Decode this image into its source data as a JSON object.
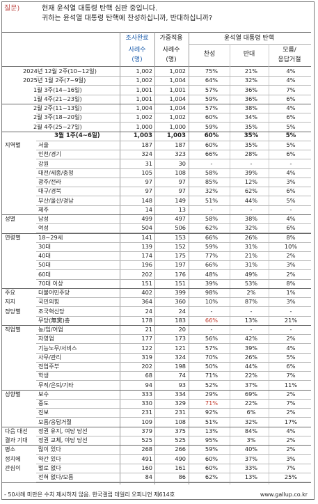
{
  "question": {
    "label": "질문)",
    "line1": "현재 윤석열 대통령 탄핵 심판 중입니다.",
    "line2": "귀하는 윤석열 대통령 탄핵에 찬성하십니까, 반대하십니까?"
  },
  "headers": {
    "survey": "조사완료",
    "weighted": "가중적용",
    "cases1": "사례수",
    "cases2": "(명)",
    "group": "윤석열 대통령 탄핵",
    "approve": "찬성",
    "oppose": "반대",
    "unsure1": "모름/",
    "unsure2": "응답거절"
  },
  "rows": [
    {
      "g": "",
      "l": "2024년 12월 2주(10~12일)",
      "n": "1,002",
      "w": "1,002",
      "a": "75%",
      "o": "21%",
      "u": "4%",
      "type": "trend"
    },
    {
      "g": "",
      "l": "2025년 1월 2주(7~9일)",
      "n": "1,002",
      "w": "1,004",
      "a": "64%",
      "o": "32%",
      "u": "4%",
      "type": "trend"
    },
    {
      "g": "",
      "l": "1월 3주(14~16일)",
      "n": "1,001",
      "w": "1,001",
      "a": "57%",
      "o": "36%",
      "u": "7%",
      "type": "trend"
    },
    {
      "g": "",
      "l": "1월 4주(21~23일)",
      "n": "1,001",
      "w": "1,004",
      "a": "59%",
      "o": "36%",
      "u": "6%",
      "type": "trend"
    },
    {
      "g": "",
      "l": "2월 2주(11~13일)",
      "n": "1,004",
      "w": "1,004",
      "a": "57%",
      "o": "38%",
      "u": "4%",
      "type": "trend"
    },
    {
      "g": "",
      "l": "2월 3주(18~20일)",
      "n": "1,002",
      "w": "1,002",
      "a": "60%",
      "o": "34%",
      "u": "6%",
      "type": "trend"
    },
    {
      "g": "",
      "l": "2월 4주(25~27일)",
      "n": "1,000",
      "w": "1,000",
      "a": "59%",
      "o": "35%",
      "u": "5%",
      "type": "trend"
    },
    {
      "g": "",
      "l": "3월 1주(4~6일)",
      "n": "1,003",
      "w": "1,003",
      "a": "60%",
      "o": "35%",
      "u": "5%",
      "type": "current"
    },
    {
      "g": "지역별",
      "l": "서울",
      "n": "187",
      "w": "187",
      "a": "60%",
      "o": "35%",
      "u": "5%"
    },
    {
      "g": "",
      "l": "인천/경기",
      "n": "324",
      "w": "323",
      "a": "66%",
      "o": "28%",
      "u": "6%"
    },
    {
      "g": "",
      "l": "강원",
      "n": "31",
      "w": "30",
      "a": "-",
      "o": "-",
      "u": "-"
    },
    {
      "g": "",
      "l": "대전/세종/충청",
      "n": "105",
      "w": "108",
      "a": "58%",
      "o": "39%",
      "u": "4%"
    },
    {
      "g": "",
      "l": "광주/전라",
      "n": "97",
      "w": "97",
      "a": "85%",
      "o": "12%",
      "u": "3%"
    },
    {
      "g": "",
      "l": "대구/경북",
      "n": "97",
      "w": "97",
      "a": "32%",
      "o": "62%",
      "u": "6%"
    },
    {
      "g": "",
      "l": "부산/울산/경남",
      "n": "148",
      "w": "149",
      "a": "51%",
      "o": "44%",
      "u": "5%"
    },
    {
      "g": "",
      "l": "제주",
      "n": "14",
      "w": "13",
      "a": "-",
      "o": "-",
      "u": "-"
    },
    {
      "g": "성별",
      "l": "남성",
      "n": "499",
      "w": "497",
      "a": "58%",
      "o": "38%",
      "u": "4%",
      "sep": true
    },
    {
      "g": "",
      "l": "여성",
      "n": "504",
      "w": "506",
      "a": "62%",
      "o": "32%",
      "u": "6%"
    },
    {
      "g": "연령별",
      "l": "18~29세",
      "n": "141",
      "w": "153",
      "a": "66%",
      "o": "26%",
      "u": "8%",
      "sep": true
    },
    {
      "g": "",
      "l": "30대",
      "n": "139",
      "w": "152",
      "a": "59%",
      "o": "31%",
      "u": "10%"
    },
    {
      "g": "",
      "l": "40대",
      "n": "174",
      "w": "175",
      "a": "77%",
      "o": "21%",
      "u": "2%"
    },
    {
      "g": "",
      "l": "50대",
      "n": "196",
      "w": "197",
      "a": "66%",
      "o": "31%",
      "u": "3%"
    },
    {
      "g": "",
      "l": "60대",
      "n": "202",
      "w": "176",
      "a": "48%",
      "o": "49%",
      "u": "2%"
    },
    {
      "g": "",
      "l": "70대 이상",
      "n": "151",
      "w": "151",
      "a": "39%",
      "o": "53%",
      "u": "8%"
    },
    {
      "g": "주요",
      "l": "더불어민주당",
      "n": "402",
      "w": "399",
      "a": "98%",
      "o": "2%",
      "u": "1%",
      "sep": true
    },
    {
      "g": "지지",
      "l": "국민의힘",
      "n": "364",
      "w": "360",
      "a": "10%",
      "o": "87%",
      "u": "3%"
    },
    {
      "g": "정당별",
      "l": "조국혁신당",
      "n": "24",
      "w": "24",
      "a": "-",
      "o": "-",
      "u": "-"
    },
    {
      "g": "",
      "l": "무당(無黨)층",
      "n": "178",
      "w": "183",
      "a": "66%",
      "o": "13%",
      "u": "21%",
      "ared": true
    },
    {
      "g": "직업별",
      "l": "농/임/어업",
      "n": "21",
      "w": "20",
      "a": "-",
      "o": "-",
      "u": "-",
      "sep": true
    },
    {
      "g": "",
      "l": "자영업",
      "n": "177",
      "w": "173",
      "a": "56%",
      "o": "42%",
      "u": "2%"
    },
    {
      "g": "",
      "l": "기능노무/서비스",
      "n": "122",
      "w": "121",
      "a": "57%",
      "o": "39%",
      "u": "4%"
    },
    {
      "g": "",
      "l": "사무/관리",
      "n": "319",
      "w": "324",
      "a": "70%",
      "o": "26%",
      "u": "5%"
    },
    {
      "g": "",
      "l": "전업주부",
      "n": "202",
      "w": "198",
      "a": "50%",
      "o": "44%",
      "u": "6%"
    },
    {
      "g": "",
      "l": "학생",
      "n": "68",
      "w": "74",
      "a": "71%",
      "o": "22%",
      "u": "7%"
    },
    {
      "g": "",
      "l": "무직/은퇴/기타",
      "n": "94",
      "w": "93",
      "a": "52%",
      "o": "37%",
      "u": "11%"
    },
    {
      "g": "성향별",
      "l": "보수",
      "n": "333",
      "w": "334",
      "a": "29%",
      "o": "69%",
      "u": "2%",
      "sep": true
    },
    {
      "g": "",
      "l": "중도",
      "n": "330",
      "w": "329",
      "a": "71%",
      "o": "22%",
      "u": "7%",
      "ared": true
    },
    {
      "g": "",
      "l": "진보",
      "n": "231",
      "w": "231",
      "a": "92%",
      "o": "6%",
      "u": "2%"
    },
    {
      "g": "",
      "l": "모름/응답거절",
      "n": "109",
      "w": "108",
      "a": "51%",
      "o": "32%",
      "u": "17%"
    },
    {
      "g": "다음 대선",
      "l": "정권 유지, 여당 당선",
      "n": "379",
      "w": "375",
      "a": "13%",
      "o": "84%",
      "u": "4%",
      "sep": true
    },
    {
      "g": "결과 기대",
      "l": "정권 교체, 야당 당선",
      "n": "525",
      "w": "525",
      "a": "95%",
      "o": "3%",
      "u": "2%"
    },
    {
      "g": "평소",
      "l": "많이 있다",
      "n": "268",
      "w": "266",
      "a": "59%",
      "o": "40%",
      "u": "2%",
      "sep": true
    },
    {
      "g": "정치에",
      "l": "약간 있다",
      "n": "491",
      "w": "490",
      "a": "60%",
      "o": "37%",
      "u": "3%"
    },
    {
      "g": "관심이",
      "l": "별로 없다",
      "n": "160",
      "w": "161",
      "a": "60%",
      "o": "33%",
      "u": "7%"
    },
    {
      "g": "",
      "l": "전혀 없다/모름",
      "n": "84",
      "w": "86",
      "a": "62%",
      "o": "13%",
      "u": "25%"
    }
  ],
  "footer": {
    "note": "- 50사례 미만은 수치 제시하지 않음. 한국갤럽 데일리 오피니언 제614호",
    "url": "www.gallup.co.kr"
  }
}
